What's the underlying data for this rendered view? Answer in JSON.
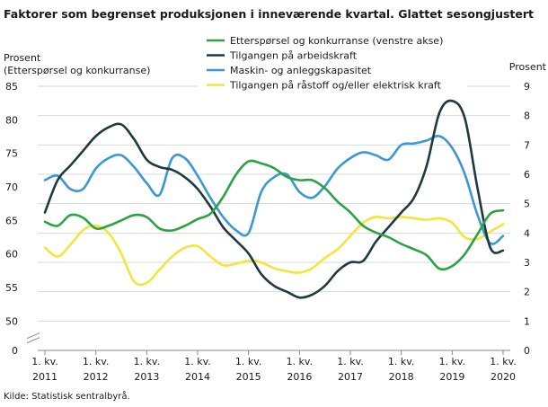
{
  "chart_data": {
    "type": "line",
    "title": "Faktorer som begrenset produksjonen i inneværende kvartal. Glattet sesongjustert",
    "left_axis_label_line1": "Prosent",
    "left_axis_label_line2": "(Etterspørsel  og konkurranse)",
    "right_axis_label": "Prosent",
    "source": "Kilde: Statistisk sentralbyrå.",
    "y_left": {
      "ticks": [
        "0",
        "50",
        "55",
        "60",
        "65",
        "70",
        "75",
        "80",
        "85"
      ],
      "min": 0,
      "broken_below": 50,
      "max": 85
    },
    "y_right": {
      "ticks": [
        "0",
        "1",
        "2",
        "3",
        "4",
        "5",
        "6",
        "7",
        "8",
        "9"
      ],
      "min": 0,
      "max": 9
    },
    "x_labels": [
      {
        "quarter": "1. kv.",
        "year": "2011"
      },
      {
        "quarter": "1. kv.",
        "year": "2012"
      },
      {
        "quarter": "1. kv.",
        "year": "2013"
      },
      {
        "quarter": "1. kv.",
        "year": "2014"
      },
      {
        "quarter": "1. kv.",
        "year": "2015"
      },
      {
        "quarter": "1. kv.",
        "year": "2016"
      },
      {
        "quarter": "1. kv.",
        "year": "2017"
      },
      {
        "quarter": "1. kv.",
        "year": "2018"
      },
      {
        "quarter": "1. kv.",
        "year": "2019"
      },
      {
        "quarter": "1. kv.",
        "year": "2020"
      }
    ],
    "x_start": "2011Q1",
    "x_end": "2020Q3",
    "grid": "horizontal",
    "legend_position": "top-center",
    "series": [
      {
        "name": "Etterspørsel og konkurranse (venstre akse)",
        "axis": "left",
        "color": "#2ca245",
        "values": [
          64.8,
          64.2,
          65.8,
          65.4,
          63.8,
          64.2,
          65.0,
          65.8,
          65.5,
          63.8,
          63.5,
          64.2,
          65.2,
          66.0,
          68.5,
          71.8,
          73.8,
          73.5,
          72.8,
          71.5,
          71.0,
          71.0,
          69.8,
          67.8,
          66.2,
          64.2,
          63.2,
          62.5,
          61.5,
          60.7,
          59.8,
          57.8,
          58.2,
          60.0,
          63.0,
          66.0,
          66.5
        ]
      },
      {
        "name": "Tilgangen på arbeidskraft",
        "axis": "right",
        "color": "#1f3a3f",
        "values": [
          4.7,
          5.8,
          6.3,
          6.8,
          7.3,
          7.6,
          7.7,
          7.2,
          6.5,
          6.25,
          6.15,
          5.9,
          5.5,
          4.9,
          4.2,
          3.75,
          3.3,
          2.6,
          2.2,
          2.0,
          1.8,
          1.9,
          2.2,
          2.7,
          3.0,
          3.05,
          3.7,
          4.2,
          4.7,
          5.2,
          6.3,
          8.1,
          8.5,
          7.9,
          5.5,
          3.5,
          3.4
        ]
      },
      {
        "name": "Maskin- og anleggskapasitet",
        "axis": "right",
        "color": "#3b98d0",
        "values": [
          5.8,
          5.95,
          5.5,
          5.5,
          6.2,
          6.55,
          6.65,
          6.25,
          5.7,
          5.3,
          6.55,
          6.55,
          5.95,
          5.2,
          4.55,
          4.1,
          4.0,
          5.4,
          5.9,
          6.0,
          5.4,
          5.2,
          5.6,
          6.2,
          6.55,
          6.75,
          6.65,
          6.5,
          7.0,
          7.05,
          7.15,
          7.3,
          6.9,
          6.0,
          4.6,
          3.65,
          3.9
        ]
      },
      {
        "name": "Tilgangen på råstoff og/eller elektrisk kraft",
        "axis": "right",
        "color": "#f2e53b",
        "values": [
          3.5,
          3.2,
          3.6,
          4.1,
          4.25,
          4.0,
          3.3,
          2.35,
          2.3,
          2.75,
          3.2,
          3.5,
          3.55,
          3.2,
          2.9,
          2.95,
          3.05,
          3.0,
          2.8,
          2.7,
          2.65,
          2.8,
          3.15,
          3.45,
          3.9,
          4.35,
          4.55,
          4.5,
          4.55,
          4.5,
          4.45,
          4.5,
          4.35,
          3.85,
          3.8,
          4.05,
          4.3
        ]
      }
    ]
  }
}
